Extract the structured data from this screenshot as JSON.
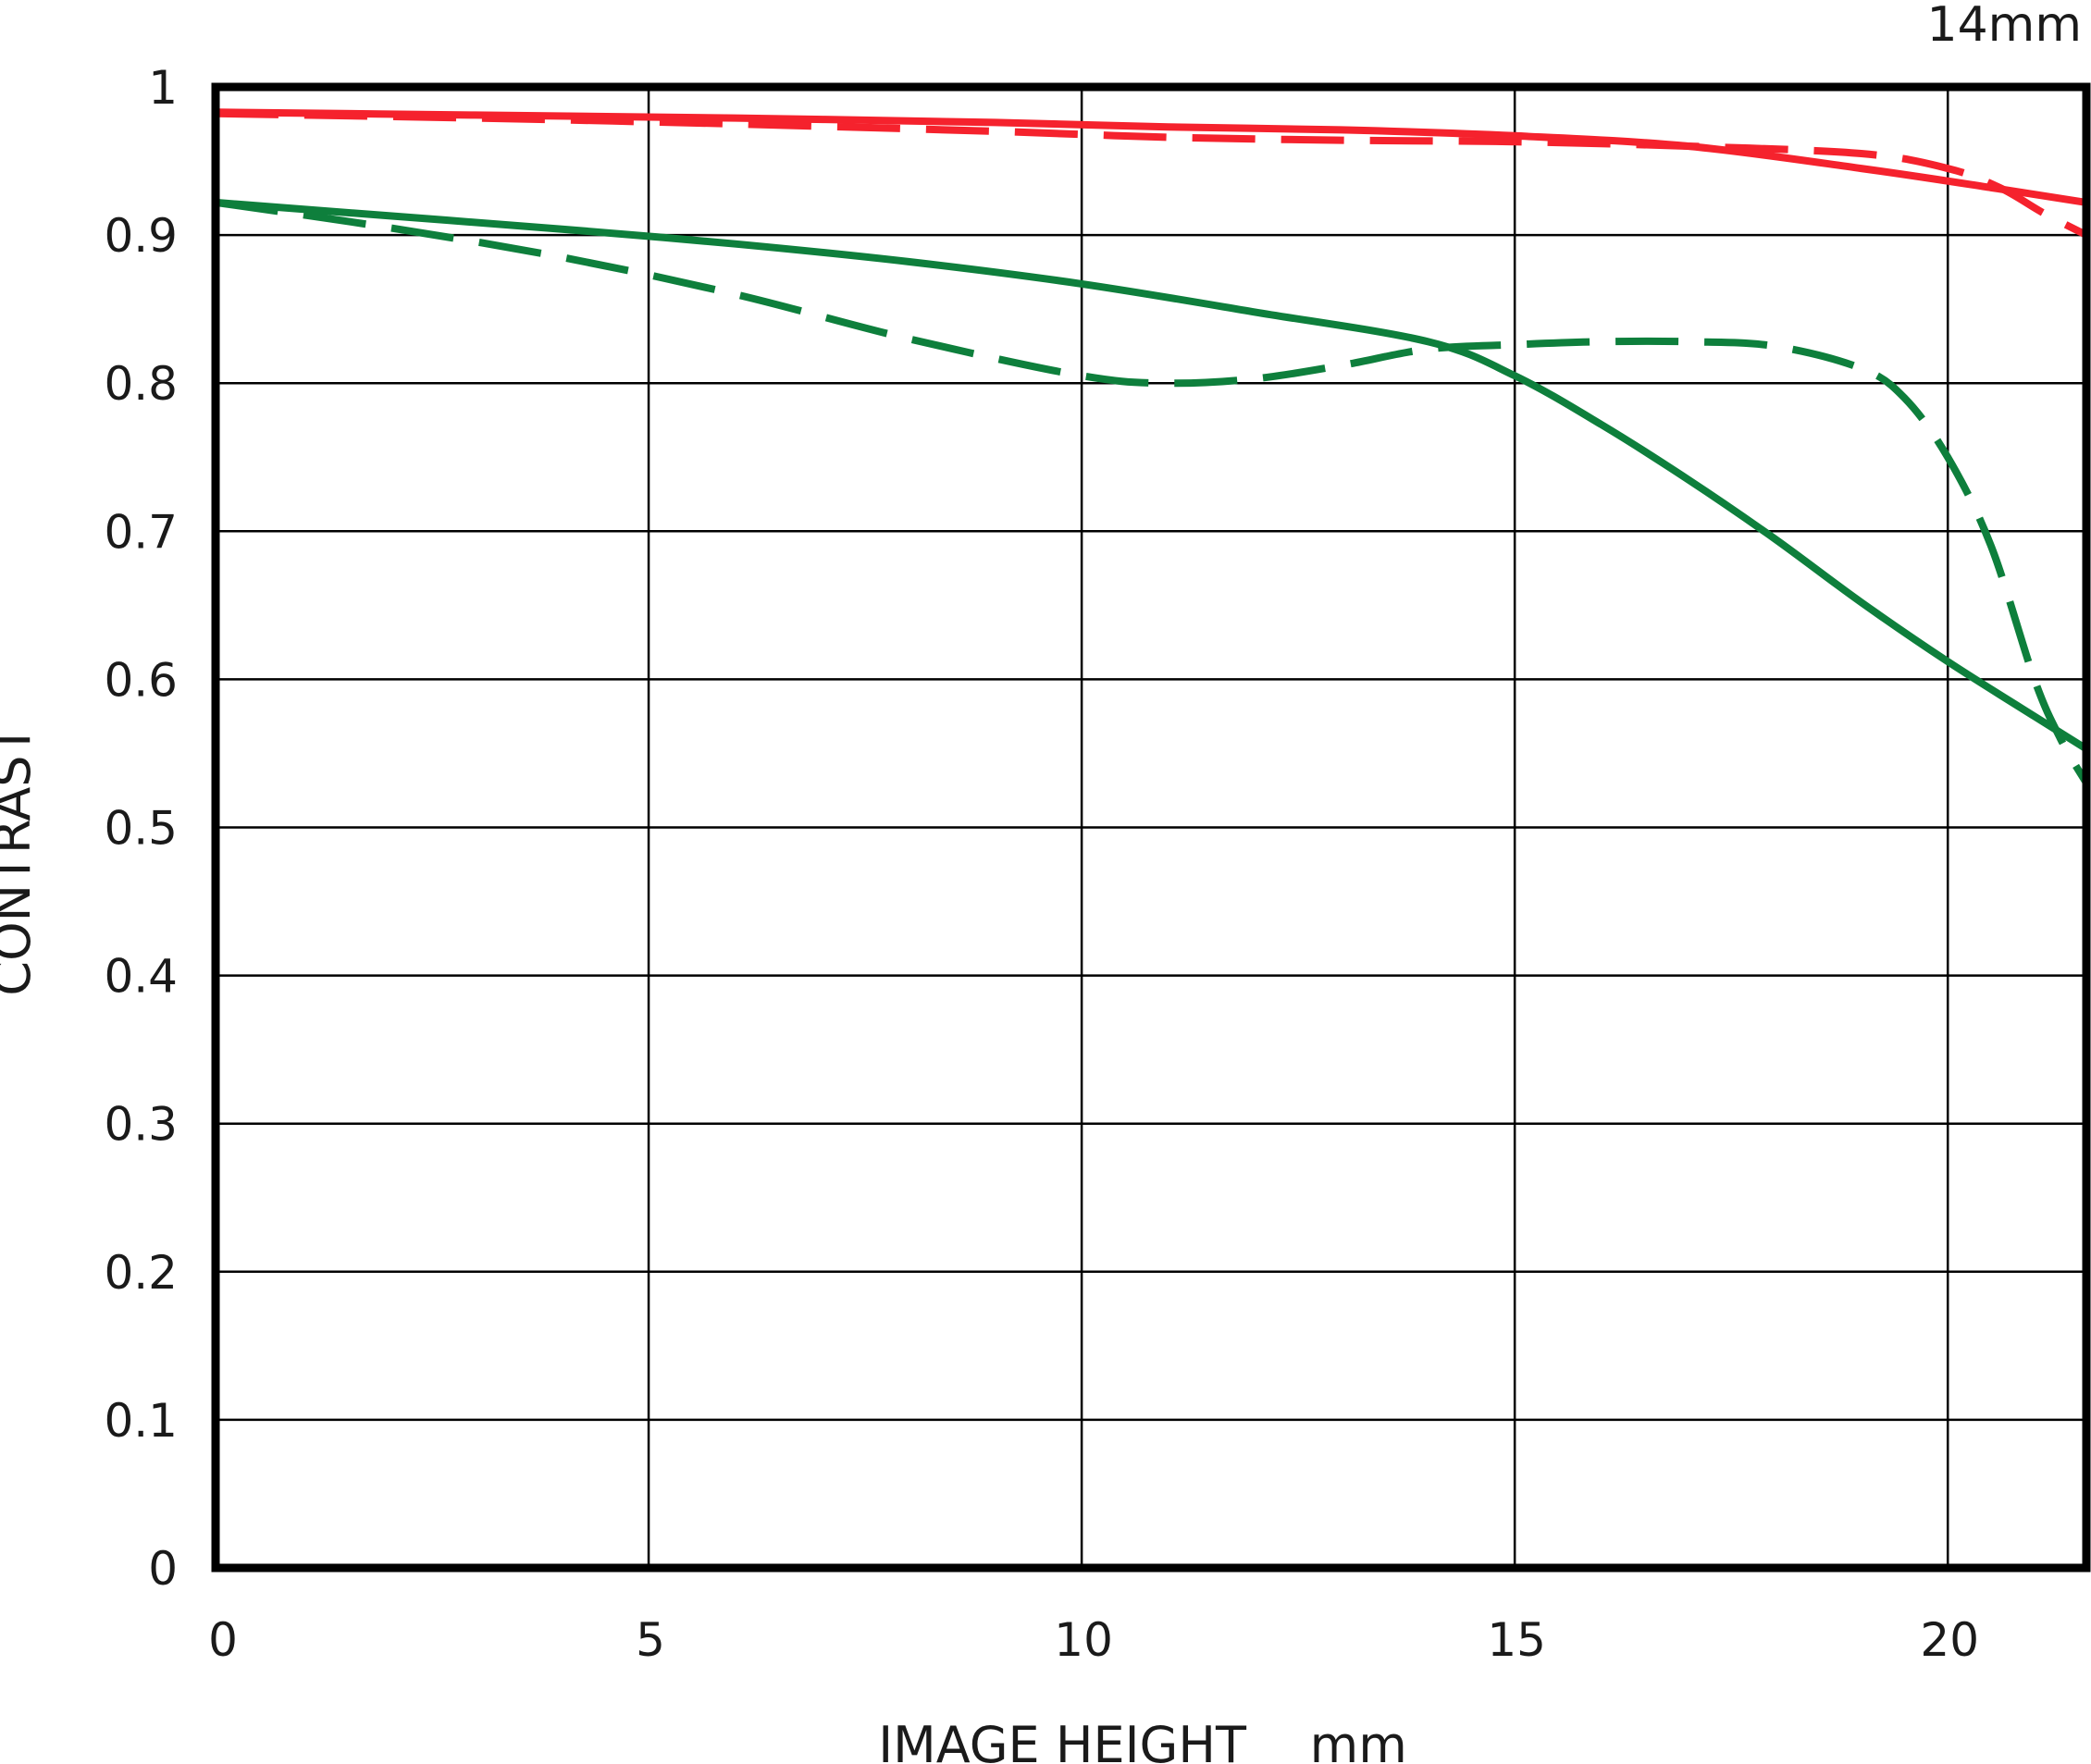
{
  "chart_data": {
    "type": "line",
    "corner_label": "14mm",
    "xlabel": "IMAGE HEIGHT    mm",
    "ylabel": "CONTRAST",
    "xlim": [
      0,
      21.6
    ],
    "ylim": [
      0,
      1
    ],
    "x_ticks": [
      0,
      5,
      10,
      15,
      20
    ],
    "x_tick_labels": [
      "0",
      "5",
      "10",
      "15",
      "20"
    ],
    "y_ticks": [
      0,
      0.1,
      0.2,
      0.3,
      0.4,
      0.5,
      0.6,
      0.7,
      0.8,
      0.9,
      1
    ],
    "y_tick_labels": [
      "0",
      "0.1",
      "0.2",
      "0.3",
      "0.4",
      "0.5",
      "0.6",
      "0.7",
      "0.8",
      "0.9",
      "1"
    ],
    "grid": true,
    "colors": {
      "red": "#f5222d",
      "green": "#0e7f3c"
    },
    "series": [
      {
        "color": "#f5222d",
        "style": "solid",
        "x": [
          0,
          3,
          6,
          9,
          11,
          13,
          15,
          17,
          19,
          20.5,
          21.6
        ],
        "y": [
          0.983,
          0.981,
          0.979,
          0.976,
          0.973,
          0.971,
          0.967,
          0.96,
          0.945,
          0.932,
          0.922
        ]
      },
      {
        "color": "#f5222d",
        "style": "dashed",
        "x": [
          0,
          3,
          6,
          9,
          11,
          13,
          15,
          17,
          19,
          20,
          20.6,
          21.1,
          21.6
        ],
        "y": [
          0.982,
          0.979,
          0.975,
          0.97,
          0.966,
          0.964,
          0.963,
          0.96,
          0.955,
          0.945,
          0.932,
          0.915,
          0.9
        ]
      },
      {
        "color": "#0e7f3c",
        "style": "solid",
        "x": [
          0,
          2,
          4,
          6,
          8,
          10,
          12,
          14,
          15,
          16,
          17,
          18,
          19,
          20,
          21,
          21.6
        ],
        "y": [
          0.922,
          0.913,
          0.904,
          0.894,
          0.882,
          0.867,
          0.848,
          0.828,
          0.805,
          0.772,
          0.735,
          0.695,
          0.652,
          0.612,
          0.575,
          0.553
        ]
      },
      {
        "color": "#0e7f3c",
        "style": "dashed",
        "x": [
          0,
          2,
          4,
          6,
          8,
          10,
          11,
          12,
          13,
          14,
          15,
          16,
          17,
          18,
          19,
          19.5,
          20,
          20.5,
          21,
          21.3,
          21.6
        ],
        "y": [
          0.922,
          0.905,
          0.885,
          0.86,
          0.83,
          0.805,
          0.8,
          0.803,
          0.812,
          0.823,
          0.826,
          0.828,
          0.828,
          0.825,
          0.81,
          0.79,
          0.75,
          0.69,
          0.6,
          0.56,
          0.53
        ]
      }
    ]
  }
}
